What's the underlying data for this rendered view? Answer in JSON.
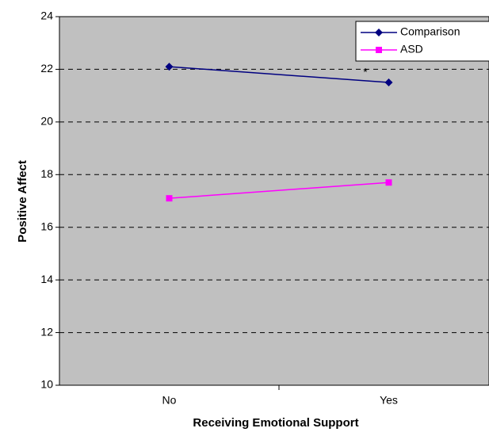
{
  "chart_data": {
    "type": "line",
    "x_label": "Receiving Emotional Support",
    "y_label": "Positive Affect",
    "categories": [
      "No",
      "Yes"
    ],
    "series": [
      {
        "name": "Comparison",
        "color": "#000080",
        "marker": "diamond",
        "values": [
          22.1,
          21.5
        ]
      },
      {
        "name": "ASD",
        "color": "#ff00ff",
        "marker": "square",
        "values": [
          17.1,
          17.7
        ]
      }
    ],
    "ylim": [
      10,
      24
    ],
    "yticks": [
      10,
      12,
      14,
      16,
      18,
      20,
      22,
      24
    ],
    "grid": true,
    "legend": "top-right",
    "annotation": "*"
  }
}
